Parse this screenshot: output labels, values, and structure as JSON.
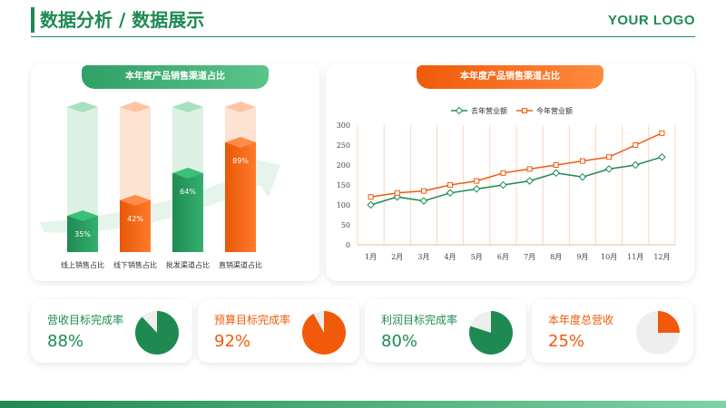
{
  "header": {
    "title": "数据分析 / 数据展示",
    "logo": "YOUR LOGO"
  },
  "colors": {
    "green": "#1e8a52",
    "orange": "#f05a0a"
  },
  "bar_card": {
    "title": "本年度产品销售渠道占比",
    "chart_data": {
      "type": "bar",
      "categories": [
        "线上销售占比",
        "线下销售占比",
        "批发渠道占比",
        "直销渠道占比"
      ],
      "values": [
        35,
        42,
        64,
        89
      ],
      "value_labels": [
        "35%",
        "42%",
        "64%",
        "89%"
      ],
      "ylim": [
        0,
        100
      ]
    }
  },
  "line_card": {
    "title": "本年度产品销售渠道占比",
    "chart_data": {
      "type": "line",
      "categories": [
        "1月",
        "2月",
        "3月",
        "4月",
        "5月",
        "6月",
        "7月",
        "8月",
        "9月",
        "10月",
        "11月",
        "12月"
      ],
      "y_ticks": [
        "0",
        "50",
        "100",
        "150",
        "200",
        "250",
        "300"
      ],
      "ylim": [
        0,
        300
      ],
      "legend_position": "top",
      "series": [
        {
          "name": "去年营业额",
          "color": "#1e8a52",
          "values": [
            100,
            120,
            110,
            130,
            140,
            150,
            160,
            180,
            170,
            190,
            200,
            220
          ]
        },
        {
          "name": "今年营业额",
          "color": "#f05a0a",
          "values": [
            120,
            130,
            135,
            150,
            160,
            180,
            190,
            200,
            210,
            220,
            250,
            280
          ]
        }
      ]
    }
  },
  "kpis": [
    {
      "label": "营收目标完成率",
      "value": "88%",
      "percent": 88,
      "color": "green"
    },
    {
      "label": "预算目标完成率",
      "value": "92%",
      "percent": 92,
      "color": "orange"
    },
    {
      "label": "利润目标完成率",
      "value": "80%",
      "percent": 80,
      "color": "green"
    },
    {
      "label": "本年度总营收",
      "value": "25%",
      "percent": 25,
      "color": "orange"
    }
  ]
}
